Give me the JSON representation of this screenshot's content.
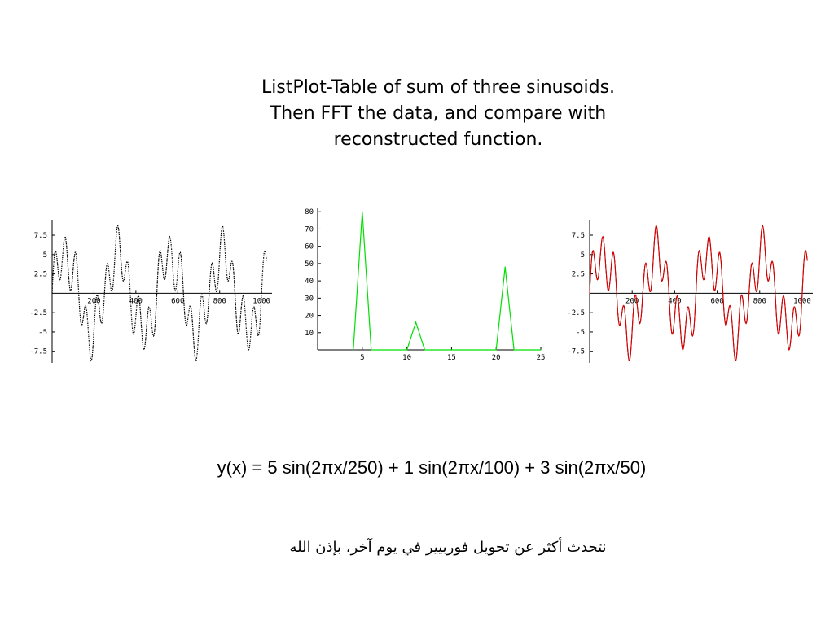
{
  "slide": {
    "title_lines": [
      "ListPlot-Table of sum of three sinusoids.",
      "Then FFT the data, and compare with",
      "reconstructed function."
    ],
    "formula": "y(x) = 5 sin(2πx/250) + 1 sin(2πx/100) + 3 sin(2πx/50)",
    "arabic_note": "نتحدث أكثر عن تحويل فوربيير في يوم آخر، بإذن الله"
  },
  "chart_data": [
    {
      "type": "line",
      "title": "",
      "xlabel": "",
      "ylabel": "",
      "xlim": [
        0,
        1050
      ],
      "ylim": [
        -9,
        9.5
      ],
      "xticks": [
        200,
        400,
        600,
        800,
        1000
      ],
      "xtick_labels": [
        "200",
        "400",
        "600",
        "800",
        "1000"
      ],
      "yticks": [
        7.5,
        5,
        2.5,
        -2.5,
        -5,
        -7.5
      ],
      "ytick_labels": [
        "7.5",
        "5",
        "2.5",
        "-2.5",
        "-5",
        "-7.5"
      ],
      "function": {
        "x_range": [
          0,
          1024
        ],
        "terms": [
          {
            "amplitude": 5,
            "period": 250
          },
          {
            "amplitude": 1,
            "period": 100
          },
          {
            "amplitude": 3,
            "period": 50
          }
        ]
      },
      "series": [
        {
          "color": "#000000",
          "style": "dotted"
        }
      ],
      "grid": false,
      "colors": {
        "data": "#000000"
      }
    },
    {
      "type": "line",
      "title": "",
      "xlabel": "",
      "ylabel": "",
      "xlim": [
        0,
        25
      ],
      "ylim": [
        0,
        82
      ],
      "xticks": [
        5,
        10,
        15,
        20,
        25
      ],
      "xtick_labels": [
        "5",
        "10",
        "15",
        "20",
        "25"
      ],
      "yticks": [
        10,
        20,
        30,
        40,
        50,
        60,
        70,
        80
      ],
      "ytick_labels": [
        "10",
        "20",
        "30",
        "40",
        "50",
        "60",
        "70",
        "80"
      ],
      "x": [
        4,
        5,
        6,
        10,
        11,
        12,
        18,
        19,
        20,
        21,
        22,
        23,
        24,
        25
      ],
      "values": [
        0,
        80,
        0,
        0,
        16,
        0,
        0,
        0,
        0,
        48,
        0,
        0,
        0,
        0
      ],
      "grid": false,
      "colors": {
        "line": "#00e000"
      }
    },
    {
      "type": "line",
      "title": "",
      "xlabel": "",
      "ylabel": "",
      "xlim": [
        0,
        1050
      ],
      "ylim": [
        -9,
        9.5
      ],
      "xticks": [
        200,
        400,
        600,
        800,
        1000
      ],
      "xtick_labels": [
        "200",
        "400",
        "600",
        "800",
        "1000"
      ],
      "yticks": [
        7.5,
        5,
        2.5,
        -2.5,
        -5,
        -7.5
      ],
      "ytick_labels": [
        "7.5",
        "5",
        "2.5",
        "-2.5",
        "-5",
        "-7.5"
      ],
      "function": {
        "x_range": [
          0,
          1024
        ],
        "terms": [
          {
            "amplitude": 5,
            "period": 250
          },
          {
            "amplitude": 1,
            "period": 100
          },
          {
            "amplitude": 3,
            "period": 50
          }
        ]
      },
      "series": [
        {
          "color": "#000000",
          "style": "solid"
        },
        {
          "color": "#e00000",
          "style": "solid"
        }
      ],
      "grid": false,
      "colors": {
        "data": "#000000",
        "reconstructed": "#e00000"
      }
    }
  ]
}
